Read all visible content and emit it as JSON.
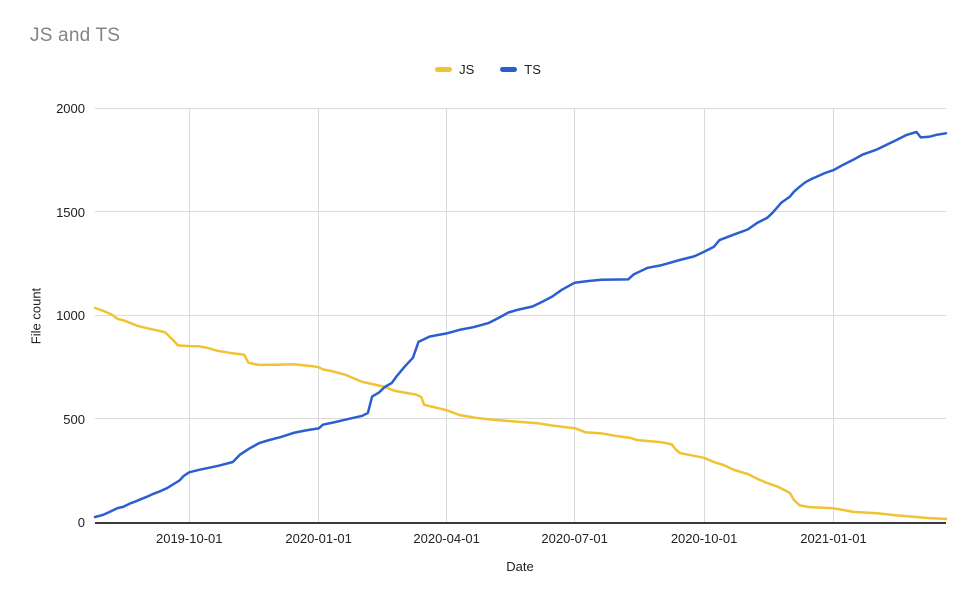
{
  "chart_data": {
    "type": "line",
    "title": "JS and TS",
    "xlabel": "Date",
    "ylabel": "File count",
    "ylim": [
      0,
      2000
    ],
    "y_ticks": [
      0,
      500,
      1000,
      1500,
      2000
    ],
    "x_ticks": [
      "2019-10-01",
      "2020-01-01",
      "2020-04-01",
      "2020-07-01",
      "2020-10-01",
      "2021-01-01"
    ],
    "x_range": [
      "2019-07-26",
      "2021-03-22"
    ],
    "grid": true,
    "legend_position": "top-center",
    "axis_color": "#3a3a3a",
    "gridline_color": "#dadada",
    "series": [
      {
        "name": "JS",
        "color": "#F1C232",
        "points": [
          [
            "2019-07-26",
            1034
          ],
          [
            "2019-08-01",
            1020
          ],
          [
            "2019-08-07",
            1002
          ],
          [
            "2019-08-11",
            981
          ],
          [
            "2019-08-15",
            975
          ],
          [
            "2019-08-20",
            962
          ],
          [
            "2019-08-25",
            948
          ],
          [
            "2019-09-01",
            936
          ],
          [
            "2019-09-08",
            926
          ],
          [
            "2019-09-14",
            916
          ],
          [
            "2019-09-17",
            895
          ],
          [
            "2019-09-20",
            875
          ],
          [
            "2019-09-23",
            853
          ],
          [
            "2019-10-01",
            850
          ],
          [
            "2019-10-08",
            849
          ],
          [
            "2019-10-14",
            841
          ],
          [
            "2019-10-21",
            827
          ],
          [
            "2019-11-01",
            815
          ],
          [
            "2019-11-09",
            808
          ],
          [
            "2019-11-12",
            770
          ],
          [
            "2019-11-19",
            759
          ],
          [
            "2019-12-01",
            760
          ],
          [
            "2019-12-14",
            762
          ],
          [
            "2019-12-28",
            752
          ],
          [
            "2020-01-01",
            748
          ],
          [
            "2020-01-04",
            737
          ],
          [
            "2020-01-11",
            728
          ],
          [
            "2020-01-20",
            711
          ],
          [
            "2020-02-01",
            677
          ],
          [
            "2020-02-10",
            664
          ],
          [
            "2020-02-17",
            652
          ],
          [
            "2020-02-24",
            634
          ],
          [
            "2020-03-02",
            625
          ],
          [
            "2020-03-10",
            616
          ],
          [
            "2020-03-14",
            604
          ],
          [
            "2020-03-16",
            566
          ],
          [
            "2020-03-24",
            553
          ],
          [
            "2020-04-01",
            540
          ],
          [
            "2020-04-10",
            517
          ],
          [
            "2020-04-24",
            501
          ],
          [
            "2020-05-08",
            492
          ],
          [
            "2020-05-22",
            484
          ],
          [
            "2020-06-05",
            477
          ],
          [
            "2020-06-15",
            466
          ],
          [
            "2020-06-25",
            458
          ],
          [
            "2020-07-01",
            453
          ],
          [
            "2020-07-09",
            433
          ],
          [
            "2020-07-20",
            428
          ],
          [
            "2020-08-01",
            414
          ],
          [
            "2020-08-10",
            406
          ],
          [
            "2020-08-14",
            396
          ],
          [
            "2020-08-24",
            390
          ],
          [
            "2020-09-01",
            385
          ],
          [
            "2020-09-08",
            375
          ],
          [
            "2020-09-11",
            350
          ],
          [
            "2020-09-14",
            333
          ],
          [
            "2020-09-22",
            322
          ],
          [
            "2020-10-01",
            310
          ],
          [
            "2020-10-08",
            290
          ],
          [
            "2020-10-15",
            275
          ],
          [
            "2020-10-22",
            252
          ],
          [
            "2020-11-01",
            232
          ],
          [
            "2020-11-08",
            208
          ],
          [
            "2020-11-15",
            188
          ],
          [
            "2020-11-22",
            172
          ],
          [
            "2020-12-01",
            140
          ],
          [
            "2020-12-04",
            106
          ],
          [
            "2020-12-08",
            80
          ],
          [
            "2020-12-15",
            72
          ],
          [
            "2021-01-01",
            66
          ],
          [
            "2021-01-08",
            58
          ],
          [
            "2021-01-15",
            49
          ],
          [
            "2021-02-01",
            42
          ],
          [
            "2021-02-15",
            32
          ],
          [
            "2021-03-01",
            24
          ],
          [
            "2021-03-10",
            19
          ],
          [
            "2021-03-22",
            15
          ]
        ]
      },
      {
        "name": "TS",
        "color": "#2B5FD0",
        "points": [
          [
            "2019-07-26",
            24
          ],
          [
            "2019-08-01",
            35
          ],
          [
            "2019-08-05",
            48
          ],
          [
            "2019-08-11",
            67
          ],
          [
            "2019-08-15",
            73
          ],
          [
            "2019-08-20",
            90
          ],
          [
            "2019-08-24",
            100
          ],
          [
            "2019-09-01",
            122
          ],
          [
            "2019-09-05",
            135
          ],
          [
            "2019-09-10",
            148
          ],
          [
            "2019-09-15",
            163
          ],
          [
            "2019-09-20",
            184
          ],
          [
            "2019-09-24",
            200
          ],
          [
            "2019-09-27",
            222
          ],
          [
            "2019-10-01",
            240
          ],
          [
            "2019-10-08",
            252
          ],
          [
            "2019-10-15",
            262
          ],
          [
            "2019-10-22",
            272
          ],
          [
            "2019-11-01",
            290
          ],
          [
            "2019-11-06",
            325
          ],
          [
            "2019-11-13",
            356
          ],
          [
            "2019-11-20",
            382
          ],
          [
            "2019-11-27",
            396
          ],
          [
            "2019-12-05",
            410
          ],
          [
            "2019-12-15",
            432
          ],
          [
            "2019-12-24",
            444
          ],
          [
            "2020-01-01",
            452
          ],
          [
            "2020-01-04",
            470
          ],
          [
            "2020-01-11",
            480
          ],
          [
            "2020-01-20",
            494
          ],
          [
            "2020-02-01",
            513
          ],
          [
            "2020-02-05",
            527
          ],
          [
            "2020-02-08",
            606
          ],
          [
            "2020-02-13",
            626
          ],
          [
            "2020-02-17",
            652
          ],
          [
            "2020-02-22",
            672
          ],
          [
            "2020-02-25",
            700
          ],
          [
            "2020-03-02",
            750
          ],
          [
            "2020-03-08",
            793
          ],
          [
            "2020-03-12",
            870
          ],
          [
            "2020-03-20",
            896
          ],
          [
            "2020-04-01",
            911
          ],
          [
            "2020-04-10",
            928
          ],
          [
            "2020-04-20",
            941
          ],
          [
            "2020-05-01",
            962
          ],
          [
            "2020-05-08",
            986
          ],
          [
            "2020-05-15",
            1012
          ],
          [
            "2020-05-22",
            1026
          ],
          [
            "2020-06-01",
            1041
          ],
          [
            "2020-06-08",
            1064
          ],
          [
            "2020-06-15",
            1089
          ],
          [
            "2020-06-22",
            1122
          ],
          [
            "2020-07-01",
            1156
          ],
          [
            "2020-07-10",
            1164
          ],
          [
            "2020-07-20",
            1170
          ],
          [
            "2020-08-08",
            1172
          ],
          [
            "2020-08-12",
            1196
          ],
          [
            "2020-08-22",
            1228
          ],
          [
            "2020-09-01",
            1241
          ],
          [
            "2020-09-15",
            1268
          ],
          [
            "2020-09-24",
            1283
          ],
          [
            "2020-10-01",
            1306
          ],
          [
            "2020-10-08",
            1330
          ],
          [
            "2020-10-12",
            1362
          ],
          [
            "2020-10-22",
            1388
          ],
          [
            "2020-11-01",
            1413
          ],
          [
            "2020-11-08",
            1446
          ],
          [
            "2020-11-15",
            1470
          ],
          [
            "2020-11-19",
            1496
          ],
          [
            "2020-11-22",
            1520
          ],
          [
            "2020-11-25",
            1543
          ],
          [
            "2020-12-01",
            1572
          ],
          [
            "2020-12-04",
            1596
          ],
          [
            "2020-12-08",
            1620
          ],
          [
            "2020-12-12",
            1641
          ],
          [
            "2020-12-16",
            1656
          ],
          [
            "2020-12-21",
            1671
          ],
          [
            "2020-12-26",
            1686
          ],
          [
            "2021-01-01",
            1700
          ],
          [
            "2021-01-08",
            1726
          ],
          [
            "2021-01-15",
            1750
          ],
          [
            "2021-01-22",
            1776
          ],
          [
            "2021-02-01",
            1800
          ],
          [
            "2021-02-08",
            1823
          ],
          [
            "2021-02-15",
            1846
          ],
          [
            "2021-02-22",
            1870
          ],
          [
            "2021-03-01",
            1884
          ],
          [
            "2021-03-04",
            1858
          ],
          [
            "2021-03-10",
            1861
          ],
          [
            "2021-03-15",
            1870
          ],
          [
            "2021-03-22",
            1878
          ]
        ]
      }
    ]
  }
}
